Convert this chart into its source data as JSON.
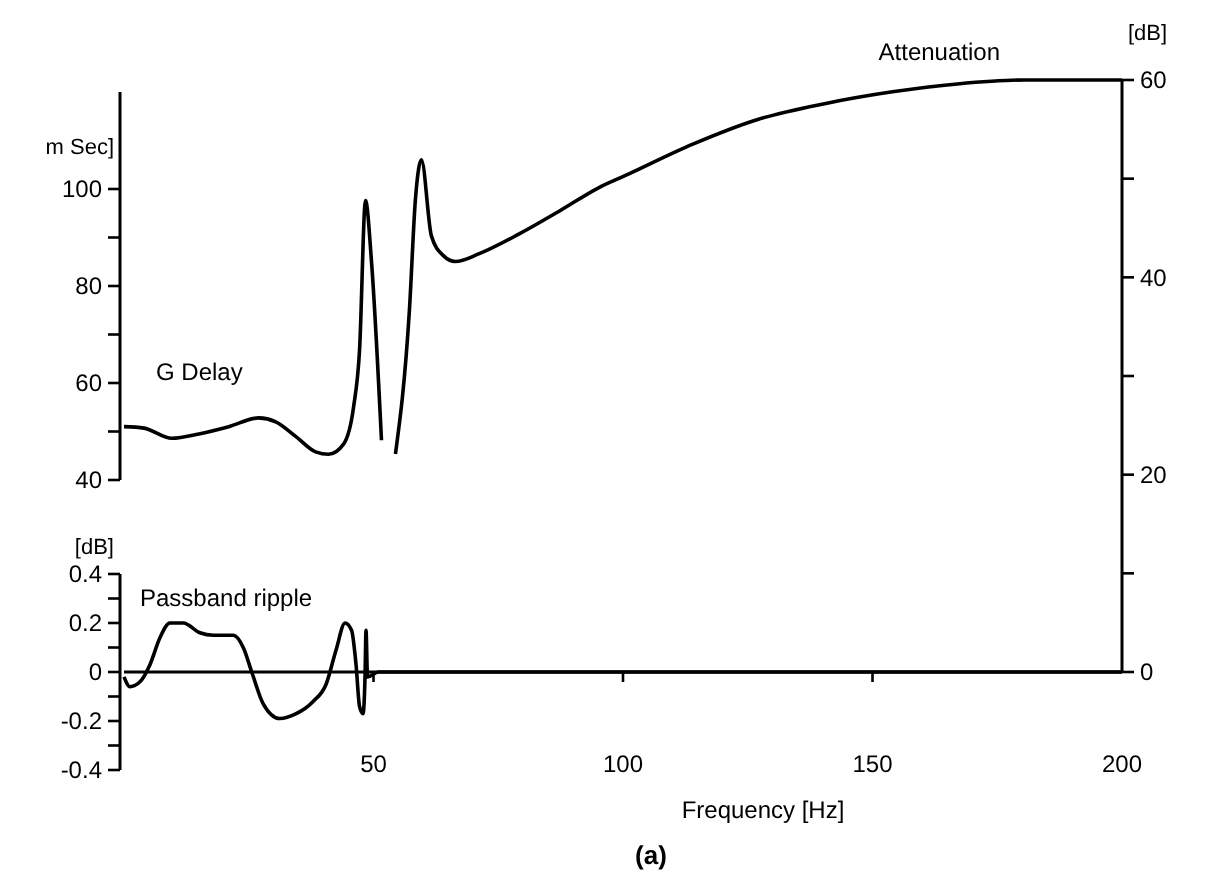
{
  "chart_data": [
    {
      "type": "line",
      "ylabel": "m Sec]",
      "xlim": [
        0,
        200
      ],
      "ylim": [
        40,
        120
      ],
      "yticks": [
        40,
        {
          "value": 50,
          "label": null
        },
        60,
        {
          "value": 70,
          "label": null
        },
        80,
        {
          "value": 90,
          "label": null
        },
        100
      ],
      "tick_labels": "y",
      "grid": false,
      "marker": "none",
      "line_style": "solid",
      "series": [
        {
          "name": "G Delay",
          "color": "#000000",
          "x": [
            0,
            4,
            9.6,
            15,
            21,
            27,
            30.4,
            34.4,
            38.4,
            41,
            44,
            46,
            47.2,
            48.4,
            49.6,
            51.6
          ],
          "values": [
            51,
            50.7,
            48.6,
            49.5,
            51,
            52.8,
            52,
            49,
            45.8,
            45.3,
            47.4,
            55,
            66.7,
            97.6,
            85,
            48.2
          ]
        }
      ]
    },
    {
      "type": "line",
      "ylabel": "[dB]",
      "xlim": [
        0,
        200
      ],
      "ylim": [
        0,
        60
      ],
      "yticks": [
        0,
        {
          "value": 10,
          "label": null
        },
        20,
        {
          "value": 30,
          "label": null
        },
        40,
        {
          "value": 50,
          "label": null
        },
        60
      ],
      "tick_labels": "y",
      "grid": false,
      "marker": "none",
      "line_style": "solid",
      "series": [
        {
          "name": "Attenuation",
          "color": "#000000",
          "x": [
            54.4,
            57.2,
            58.4,
            59.6,
            61.6,
            64,
            66.4,
            71.2,
            79.2,
            87.2,
            95.2,
            100.4,
            114,
            127,
            140.4,
            154,
            167,
            180.4,
            200
          ],
          "values": [
            22.1,
            36.7,
            47.9,
            51.9,
            44.2,
            42.2,
            41.6,
            42.4,
            44.4,
            46.7,
            49.1,
            50.3,
            53.5,
            56,
            57.6,
            58.8,
            59.6,
            60,
            60
          ]
        }
      ]
    },
    {
      "type": "line",
      "xlabel": "Frequency [Hz]",
      "ylabel": "[dB]",
      "xlim": [
        0,
        200
      ],
      "xticks": [
        50,
        100,
        150,
        200
      ],
      "ylim": [
        -0.4,
        0.4
      ],
      "yticks": [
        -0.4,
        {
          "value": -0.3,
          "label": null
        },
        -0.2,
        {
          "value": -0.1,
          "label": null
        },
        0,
        {
          "value": 0.1,
          "label": null
        },
        0.2,
        {
          "value": 0.3,
          "label": null
        },
        0.4
      ],
      "grid": false,
      "marker": "none",
      "line_style": "solid",
      "annotations": [
        "(a)"
      ],
      "series": [
        {
          "name": "Passband ripple",
          "color": "#000000",
          "x": [
            0,
            1.2,
            3.2,
            5.2,
            7.2,
            9.2,
            11.9,
            15.2,
            17.9,
            21.9,
            23.9,
            25.6,
            27.9,
            31.2,
            34.5,
            37.9,
            40.5,
            42.5,
            44.3,
            45.6,
            46.5,
            47.2,
            47.9,
            48.3,
            48.5,
            48.8,
            51,
            200
          ],
          "values": [
            -0.02,
            -0.06,
            -0.04,
            0.03,
            0.14,
            0.2,
            0.2,
            0.16,
            0.15,
            0.15,
            0.1,
            0,
            -0.13,
            -0.19,
            -0.17,
            -0.12,
            -0.05,
            0.09,
            0.2,
            0.17,
            0.03,
            -0.14,
            -0.17,
            -0.02,
            0.17,
            -0.02,
            0,
            0
          ]
        }
      ]
    }
  ]
}
